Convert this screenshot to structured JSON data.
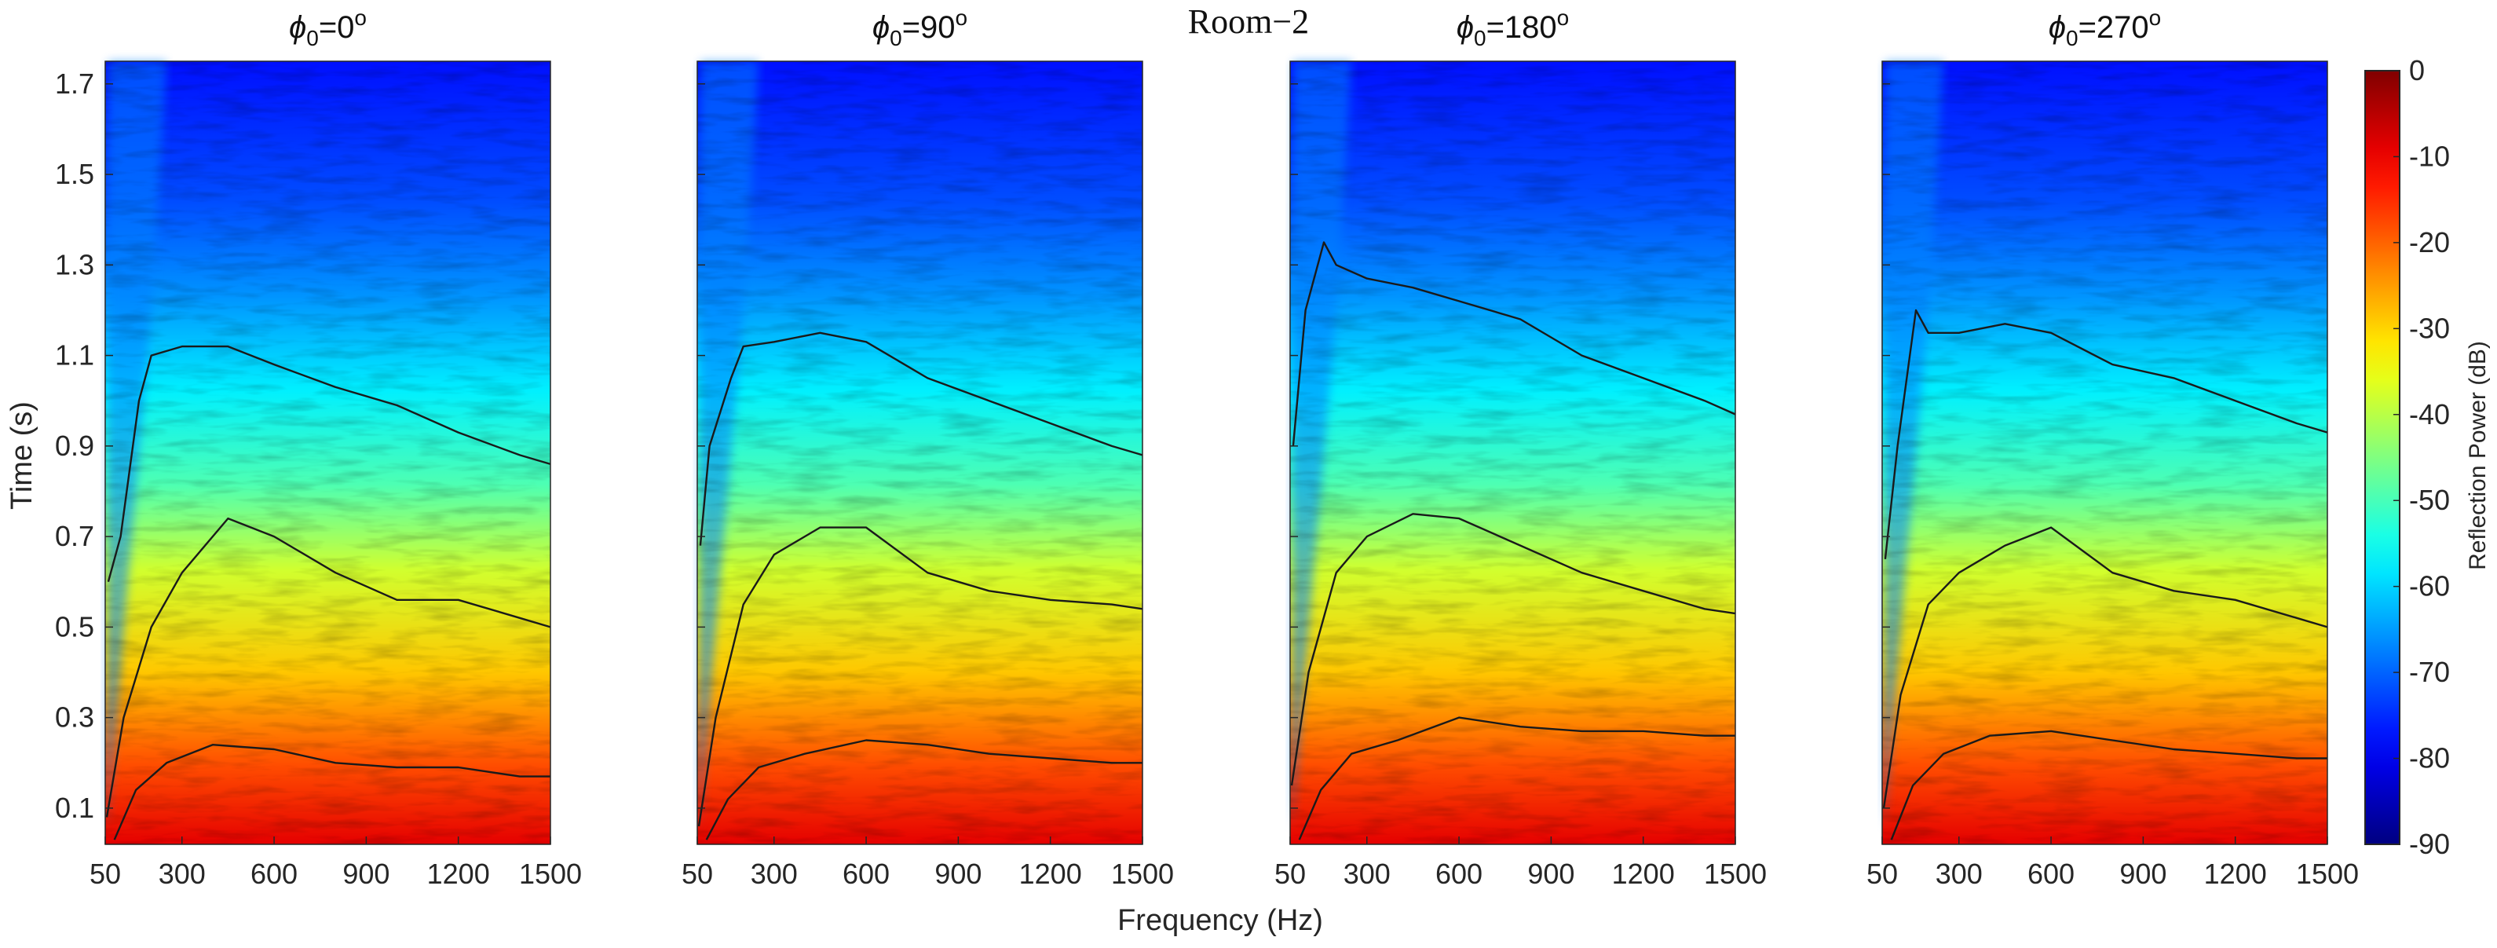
{
  "chart_data": {
    "type": "heatmap",
    "suptitle": "Room−2",
    "xlabel": "Frequency (Hz)",
    "ylabel": "Time (s)",
    "xlim": [
      50,
      1500
    ],
    "ylim": [
      0.02,
      1.75
    ],
    "x_ticks": [
      50,
      300,
      600,
      900,
      1200,
      1500
    ],
    "x_tick_labels": [
      "50",
      "300",
      "600",
      "900",
      "1200",
      "1500"
    ],
    "y_ticks": [
      0.1,
      0.3,
      0.5,
      0.7,
      0.9,
      1.1,
      1.3,
      1.5,
      1.7
    ],
    "y_tick_labels": [
      "0.1",
      "0.3",
      "0.5",
      "0.7",
      "0.9",
      "1.1",
      "1.3",
      "1.5",
      "1.7"
    ],
    "colorbar": {
      "label": "Reflection Power (dB)",
      "min": -90,
      "max": 0,
      "ticks": [
        0,
        -10,
        -20,
        -30,
        -40,
        -50,
        -60,
        -70,
        -80,
        -90
      ],
      "tick_labels": [
        "0",
        "-10",
        "-20",
        "-30",
        "-40",
        "-50",
        "-60",
        "-70",
        "-80",
        "-90"
      ],
      "colormap": "jet"
    },
    "panels": [
      {
        "title_prefix": "ϕ",
        "title_subscript": "0",
        "title_value": "=0",
        "title_superscript": "o",
        "contours": [
          {
            "level_db": -20,
            "points": [
              [
                80,
                0.03
              ],
              [
                150,
                0.14
              ],
              [
                250,
                0.2
              ],
              [
                400,
                0.24
              ],
              [
                600,
                0.23
              ],
              [
                800,
                0.2
              ],
              [
                1000,
                0.19
              ],
              [
                1200,
                0.19
              ],
              [
                1400,
                0.17
              ],
              [
                1500,
                0.17
              ]
            ]
          },
          {
            "level_db": -40,
            "points": [
              [
                55,
                0.08
              ],
              [
                110,
                0.3
              ],
              [
                200,
                0.5
              ],
              [
                300,
                0.62
              ],
              [
                450,
                0.74
              ],
              [
                600,
                0.7
              ],
              [
                800,
                0.62
              ],
              [
                1000,
                0.56
              ],
              [
                1200,
                0.56
              ],
              [
                1400,
                0.52
              ],
              [
                1500,
                0.5
              ]
            ]
          },
          {
            "level_db": -60,
            "points": [
              [
                60,
                0.6
              ],
              [
                100,
                0.7
              ],
              [
                160,
                1.0
              ],
              [
                200,
                1.1
              ],
              [
                300,
                1.12
              ],
              [
                450,
                1.12
              ],
              [
                600,
                1.08
              ],
              [
                800,
                1.03
              ],
              [
                1000,
                0.99
              ],
              [
                1200,
                0.93
              ],
              [
                1400,
                0.88
              ],
              [
                1500,
                0.86
              ]
            ]
          }
        ]
      },
      {
        "title_prefix": "ϕ",
        "title_subscript": "0",
        "title_value": "=90",
        "title_superscript": "o",
        "contours": [
          {
            "level_db": -20,
            "points": [
              [
                80,
                0.03
              ],
              [
                150,
                0.12
              ],
              [
                250,
                0.19
              ],
              [
                400,
                0.22
              ],
              [
                600,
                0.25
              ],
              [
                800,
                0.24
              ],
              [
                1000,
                0.22
              ],
              [
                1200,
                0.21
              ],
              [
                1400,
                0.2
              ],
              [
                1500,
                0.2
              ]
            ]
          },
          {
            "level_db": -40,
            "points": [
              [
                55,
                0.06
              ],
              [
                110,
                0.3
              ],
              [
                200,
                0.55
              ],
              [
                300,
                0.66
              ],
              [
                450,
                0.72
              ],
              [
                600,
                0.72
              ],
              [
                800,
                0.62
              ],
              [
                1000,
                0.58
              ],
              [
                1200,
                0.56
              ],
              [
                1400,
                0.55
              ],
              [
                1500,
                0.54
              ]
            ]
          },
          {
            "level_db": -60,
            "points": [
              [
                60,
                0.68
              ],
              [
                90,
                0.9
              ],
              [
                160,
                1.05
              ],
              [
                200,
                1.12
              ],
              [
                300,
                1.13
              ],
              [
                450,
                1.15
              ],
              [
                600,
                1.13
              ],
              [
                800,
                1.05
              ],
              [
                1000,
                1.0
              ],
              [
                1200,
                0.95
              ],
              [
                1400,
                0.9
              ],
              [
                1500,
                0.88
              ]
            ]
          }
        ]
      },
      {
        "title_prefix": "ϕ",
        "title_subscript": "0",
        "title_value": "=180",
        "title_superscript": "o",
        "contours": [
          {
            "level_db": -20,
            "points": [
              [
                80,
                0.03
              ],
              [
                150,
                0.14
              ],
              [
                250,
                0.22
              ],
              [
                400,
                0.25
              ],
              [
                600,
                0.3
              ],
              [
                800,
                0.28
              ],
              [
                1000,
                0.27
              ],
              [
                1200,
                0.27
              ],
              [
                1400,
                0.26
              ],
              [
                1500,
                0.26
              ]
            ]
          },
          {
            "level_db": -40,
            "points": [
              [
                55,
                0.15
              ],
              [
                110,
                0.4
              ],
              [
                200,
                0.62
              ],
              [
                300,
                0.7
              ],
              [
                450,
                0.75
              ],
              [
                600,
                0.74
              ],
              [
                800,
                0.68
              ],
              [
                1000,
                0.62
              ],
              [
                1200,
                0.58
              ],
              [
                1400,
                0.54
              ],
              [
                1500,
                0.53
              ]
            ]
          },
          {
            "level_db": -60,
            "points": [
              [
                60,
                0.9
              ],
              [
                100,
                1.2
              ],
              [
                160,
                1.35
              ],
              [
                200,
                1.3
              ],
              [
                300,
                1.27
              ],
              [
                450,
                1.25
              ],
              [
                600,
                1.22
              ],
              [
                800,
                1.18
              ],
              [
                1000,
                1.1
              ],
              [
                1200,
                1.05
              ],
              [
                1400,
                1.0
              ],
              [
                1500,
                0.97
              ]
            ]
          }
        ]
      },
      {
        "title_prefix": "ϕ",
        "title_subscript": "0",
        "title_value": "=270",
        "title_superscript": "o",
        "contours": [
          {
            "level_db": -20,
            "points": [
              [
                80,
                0.03
              ],
              [
                150,
                0.15
              ],
              [
                250,
                0.22
              ],
              [
                400,
                0.26
              ],
              [
                600,
                0.27
              ],
              [
                800,
                0.25
              ],
              [
                1000,
                0.23
              ],
              [
                1200,
                0.22
              ],
              [
                1400,
                0.21
              ],
              [
                1500,
                0.21
              ]
            ]
          },
          {
            "level_db": -40,
            "points": [
              [
                55,
                0.1
              ],
              [
                110,
                0.35
              ],
              [
                200,
                0.55
              ],
              [
                300,
                0.62
              ],
              [
                450,
                0.68
              ],
              [
                600,
                0.72
              ],
              [
                800,
                0.62
              ],
              [
                1000,
                0.58
              ],
              [
                1200,
                0.56
              ],
              [
                1400,
                0.52
              ],
              [
                1500,
                0.5
              ]
            ]
          },
          {
            "level_db": -60,
            "points": [
              [
                60,
                0.65
              ],
              [
                100,
                0.9
              ],
              [
                160,
                1.2
              ],
              [
                200,
                1.15
              ],
              [
                300,
                1.15
              ],
              [
                450,
                1.17
              ],
              [
                600,
                1.15
              ],
              [
                800,
                1.08
              ],
              [
                1000,
                1.05
              ],
              [
                1200,
                1.0
              ],
              [
                1400,
                0.95
              ],
              [
                1500,
                0.93
              ]
            ]
          }
        ]
      }
    ]
  }
}
